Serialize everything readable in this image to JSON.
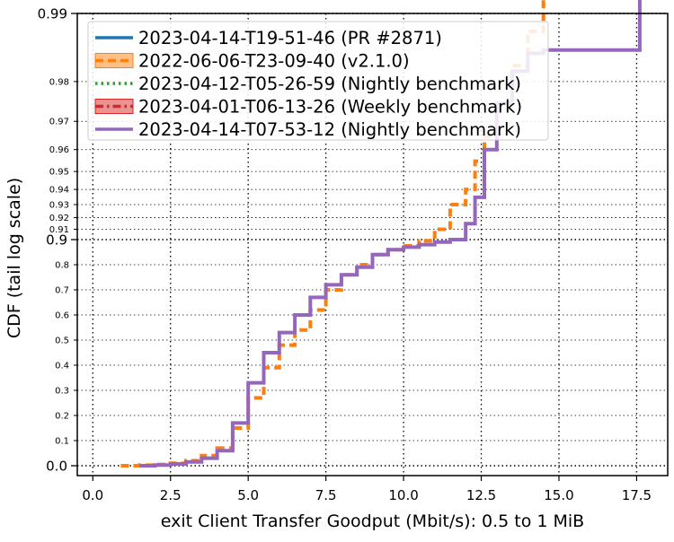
{
  "chart_data": {
    "type": "line",
    "title": "",
    "xlabel": "exit Client Transfer Goodput (Mbit/s): 0.5 to 1 MiB",
    "ylabel": "CDF (tail log scale)",
    "xlim": [
      -0.5,
      18.5
    ],
    "x_ticks": [
      0.0,
      2.5,
      5.0,
      7.5,
      10.0,
      12.5,
      15.0,
      17.5
    ],
    "x_tick_labels": [
      "0.0",
      "2.5",
      "5.0",
      "7.5",
      "10.0",
      "12.5",
      "15.0",
      "17.5"
    ],
    "y_scale": "tail-log (probability)",
    "y_major_ticks": [
      {
        "value": 0.0,
        "label": "0.0"
      },
      {
        "value": 0.9,
        "label": "0.9"
      },
      {
        "value": 0.99,
        "label": "0.99"
      }
    ],
    "y_minor_ticks": [
      {
        "value": 0.1,
        "label": "0.1"
      },
      {
        "value": 0.2,
        "label": "0.2"
      },
      {
        "value": 0.3,
        "label": "0.3"
      },
      {
        "value": 0.4,
        "label": "0.4"
      },
      {
        "value": 0.5,
        "label": "0.5"
      },
      {
        "value": 0.6,
        "label": "0.6"
      },
      {
        "value": 0.7,
        "label": "0.7"
      },
      {
        "value": 0.8,
        "label": "0.8"
      },
      {
        "value": 0.91,
        "label": "0.91"
      },
      {
        "value": 0.92,
        "label": "0.92"
      },
      {
        "value": 0.93,
        "label": "0.93"
      },
      {
        "value": 0.94,
        "label": "0.94"
      },
      {
        "value": 0.95,
        "label": "0.95"
      },
      {
        "value": 0.96,
        "label": "0.96"
      },
      {
        "value": 0.97,
        "label": "0.97"
      },
      {
        "value": 0.98,
        "label": "0.98"
      }
    ],
    "grid": true,
    "legend_position": "top-left",
    "series": [
      {
        "name": "2023-04-14-T19-51-46 (PR #2871)",
        "color": "#1f77b4",
        "style": "solid",
        "points": []
      },
      {
        "name": "2022-06-06-T23-09-40 (v2.1.0)",
        "color": "#ff7f0e",
        "style": "dashed",
        "points": [
          [
            0.9,
            0.0
          ],
          [
            1.5,
            0.002
          ],
          [
            2.0,
            0.005
          ],
          [
            2.5,
            0.01
          ],
          [
            3.0,
            0.02
          ],
          [
            3.5,
            0.04
          ],
          [
            4.0,
            0.07
          ],
          [
            4.5,
            0.15
          ],
          [
            5.0,
            0.27
          ],
          [
            5.5,
            0.39
          ],
          [
            6.0,
            0.48
          ],
          [
            6.5,
            0.54
          ],
          [
            7.0,
            0.62
          ],
          [
            7.5,
            0.7
          ],
          [
            8.0,
            0.76
          ],
          [
            8.5,
            0.8
          ],
          [
            9.0,
            0.84
          ],
          [
            9.5,
            0.86
          ],
          [
            10.0,
            0.875
          ],
          [
            10.5,
            0.895
          ],
          [
            11.0,
            0.91
          ],
          [
            11.5,
            0.93
          ],
          [
            12.0,
            0.94
          ],
          [
            12.3,
            0.955
          ],
          [
            12.6,
            0.965
          ],
          [
            13.0,
            0.975
          ],
          [
            13.5,
            0.983
          ],
          [
            14.0,
            0.988
          ],
          [
            14.5,
            0.992
          ],
          [
            14.8,
            0.995
          ]
        ]
      },
      {
        "name": "2023-04-12-T05-26-59 (Nightly benchmark)",
        "color": "#2ca02c",
        "style": "dotted",
        "points": []
      },
      {
        "name": "2023-04-01-T06-13-26 (Weekly benchmark)",
        "color": "#d62728",
        "style": "dashdot",
        "points": []
      },
      {
        "name": "2023-04-14-T07-53-12 (Nightly benchmark)",
        "color": "#9467bd",
        "style": "solid",
        "points": [
          [
            1.5,
            0.0
          ],
          [
            2.0,
            0.003
          ],
          [
            2.5,
            0.007
          ],
          [
            3.0,
            0.015
          ],
          [
            3.5,
            0.03
          ],
          [
            4.0,
            0.06
          ],
          [
            4.5,
            0.17
          ],
          [
            5.0,
            0.33
          ],
          [
            5.5,
            0.45
          ],
          [
            6.0,
            0.53
          ],
          [
            6.5,
            0.6
          ],
          [
            7.0,
            0.67
          ],
          [
            7.5,
            0.72
          ],
          [
            8.0,
            0.76
          ],
          [
            8.5,
            0.79
          ],
          [
            9.0,
            0.84
          ],
          [
            9.5,
            0.86
          ],
          [
            10.0,
            0.87
          ],
          [
            10.5,
            0.88
          ],
          [
            11.0,
            0.89
          ],
          [
            11.5,
            0.9
          ],
          [
            12.0,
            0.915
          ],
          [
            12.3,
            0.935
          ],
          [
            12.6,
            0.96
          ],
          [
            13.0,
            0.975
          ],
          [
            13.5,
            0.982
          ],
          [
            14.0,
            0.985
          ],
          [
            14.5,
            0.9855
          ],
          [
            17.6,
            0.9855
          ],
          [
            17.6,
            0.995
          ]
        ]
      }
    ]
  }
}
